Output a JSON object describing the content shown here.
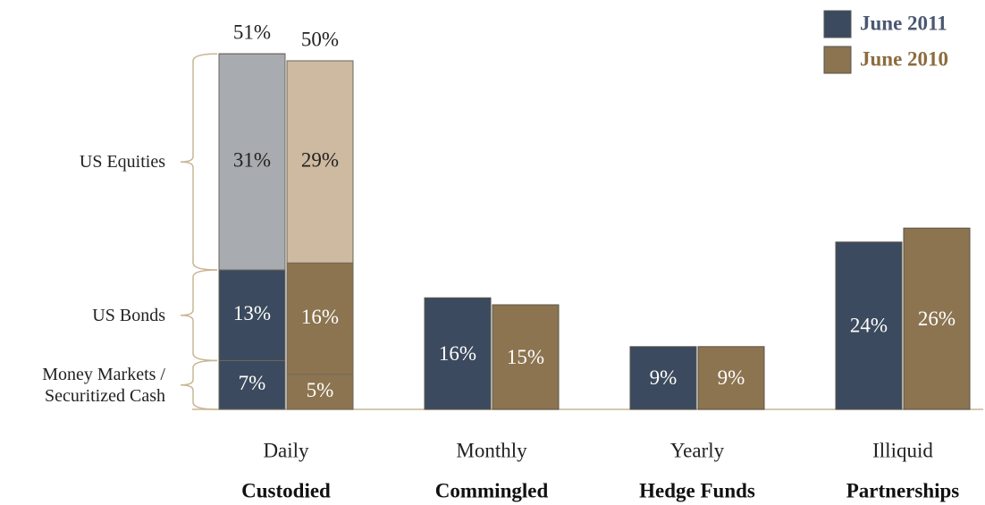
{
  "chart_data": {
    "type": "bar",
    "categories": [
      "Daily",
      "Monthly",
      "Yearly",
      "Illiquid"
    ],
    "category_groups": [
      "Custodied",
      "Commingled",
      "Hedge Funds",
      "Partnerships"
    ],
    "series": [
      {
        "name": "June 2011",
        "color": "#3b4a5e",
        "text_color": "#4a5870",
        "values": [
          51,
          16,
          9,
          24
        ],
        "value_labels": [
          "51%",
          "16%",
          "9%",
          "24%"
        ]
      },
      {
        "name": "June 2010",
        "color": "#8c7450",
        "text_color": "#8c6c3e",
        "values": [
          50,
          15,
          9,
          26
        ],
        "value_labels": [
          "50%",
          "15%",
          "9%",
          "26%"
        ]
      }
    ],
    "breakdown": {
      "category": "Daily",
      "segments": [
        {
          "name": "Money Markets / Securitized Cash",
          "colors": [
            "#3b4a5e",
            "#8c7450"
          ],
          "values": [
            7,
            5
          ],
          "value_labels": [
            "7%",
            "5%"
          ]
        },
        {
          "name": "US Bonds",
          "colors": [
            "#3b4a5e",
            "#8c7450"
          ],
          "values": [
            13,
            16
          ],
          "value_labels": [
            "13%",
            "16%"
          ]
        },
        {
          "name": "US Equities",
          "colors": [
            "#a8abaf",
            "#cdbaa0"
          ],
          "values": [
            31,
            29
          ],
          "value_labels": [
            "31%",
            "29%"
          ]
        }
      ]
    },
    "ylim": [
      0,
      55
    ],
    "legend": "top-right"
  }
}
